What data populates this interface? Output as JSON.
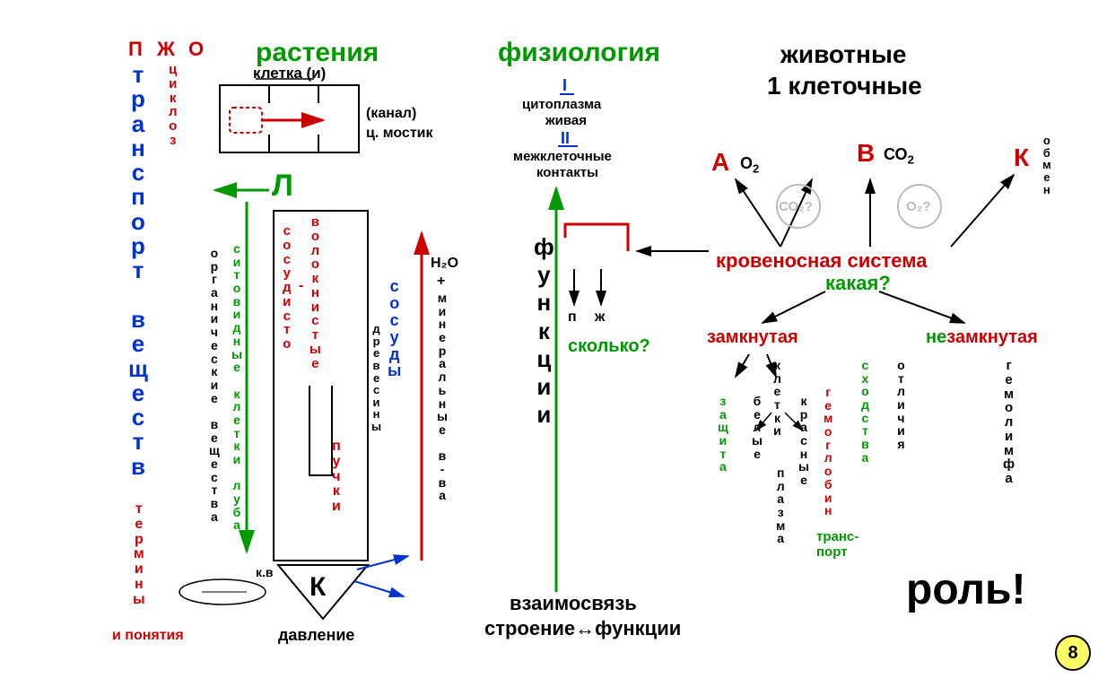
{
  "colors": {
    "red": "#cc0000",
    "green": "#009900",
    "blue": "#0033cc",
    "gray": "#888888",
    "black": "#000000",
    "yellow": "#ffff66"
  },
  "fontsizes": {
    "header": 30,
    "subheader": 22,
    "label": 18,
    "small": 15,
    "tiny": 13,
    "big": 48
  },
  "col1": {
    "P": "П",
    "Zh": "Ж",
    "O": "О",
    "cikloz": [
      "ц",
      "и",
      "к",
      "л",
      "о",
      "з"
    ],
    "transport": [
      "т",
      "р",
      "а",
      "н",
      "с",
      "п",
      "о",
      "р",
      "т",
      " ",
      "в",
      "е",
      "щ",
      "е",
      "с",
      "т",
      "в"
    ],
    "terminy": [
      "т",
      "е",
      "р",
      "м",
      "и",
      "н",
      "ы"
    ],
    "i_ponyatiya": "и понятия"
  },
  "col2": {
    "rasteniya": "растения",
    "kletka": "клетка (и)",
    "kanal": "(канал)",
    "mostik": "ц. мостик",
    "L": "Л",
    "org": [
      "о",
      "р",
      "г",
      "а",
      "н",
      "и",
      "ч",
      "е",
      "с",
      "к",
      "и",
      "е",
      " ",
      "в",
      "е",
      "щ",
      "е",
      "с",
      "т",
      "в",
      "а"
    ],
    "sito": [
      "с",
      "и",
      "т",
      "о",
      "в",
      "и",
      "д",
      "н",
      "ы",
      "е",
      " ",
      "к",
      "л",
      "е",
      "т",
      "к",
      "и",
      " ",
      "л",
      "у",
      "б",
      "а"
    ],
    "sosud": [
      "с",
      "о",
      "с",
      "у",
      "д",
      "и",
      "с",
      "т",
      "о"
    ],
    "dash": "-",
    "volokn": [
      "в",
      "о",
      "л",
      "о",
      "к",
      "н",
      "и",
      "с",
      "т",
      "ы",
      "е"
    ],
    "drev": [
      "д",
      "р",
      "е",
      "в",
      "е",
      "с",
      "и",
      "н",
      "ы"
    ],
    "sosudy": [
      "с",
      "о",
      "с",
      "у",
      "д",
      "ы"
    ],
    "puchki": [
      "п",
      "у",
      "ч",
      "к",
      "и"
    ],
    "h2o": "H₂O",
    "plus": "+",
    "miner": [
      "м",
      "и",
      "н",
      "е",
      "р",
      "а",
      "л",
      "ь",
      "н",
      "ы",
      "е",
      " ",
      "в",
      "-",
      "в",
      "а"
    ],
    "K": "К",
    "kv": "к.в",
    "davlenie": "давление"
  },
  "col3": {
    "fiziologiya": "физиология",
    "I": "I",
    "cito": "цитоплазма",
    "zhivaya": "живая",
    "II": "II",
    "mezh": "межклеточные",
    "kontakty": "контакты",
    "funkcii": [
      "ф",
      "у",
      "н",
      "к",
      "ц",
      "и",
      "и"
    ],
    "p": "п",
    "zh": "ж",
    "skolko": "сколько?",
    "vzaim": "взаимосвязь",
    "sf": "строение↔функции"
  },
  "col4": {
    "zhivotnye": "животные",
    "odnokl": "1 клеточные",
    "A": "А",
    "O2": "О",
    "o2sub": "2",
    "B": "В",
    "CO2": "СО",
    "co2sub": "2",
    "K": "К",
    "obmen": [
      "о",
      "б",
      "м",
      "е",
      "н"
    ],
    "CO2q": "СО₂?",
    "O2q": "О₂?",
    "krov": "кровеносная система",
    "kakaya": "какая?",
    "zamkn": "замкнутая",
    "nezamkn_ne": "не",
    "nezamkn_rest": "замкнутая",
    "kletki": [
      "к",
      "л",
      "е",
      "т",
      "к",
      "и"
    ],
    "zashita": [
      "з",
      "а",
      "щ",
      "и",
      "т",
      "а"
    ],
    "belye": [
      "б",
      "е",
      "л",
      "ы",
      "е"
    ],
    "krasnye": [
      "к",
      "р",
      "а",
      "с",
      "н",
      "ы",
      "е"
    ],
    "gemoglobin": [
      "г",
      "е",
      "м",
      "о",
      "г",
      "л",
      "о",
      "б",
      "и",
      "н"
    ],
    "plazma": [
      "п",
      "л",
      "а",
      "з",
      "м",
      "а"
    ],
    "transport": "транс-\nпорт",
    "shodstva": [
      "с",
      "х",
      "о",
      "д",
      "с",
      "т",
      "в",
      "а"
    ],
    "otlichiya": [
      "о",
      "т",
      "л",
      "и",
      "ч",
      "и",
      "я"
    ],
    "gemolimfa": [
      "г",
      "е",
      "м",
      "о",
      "л",
      "и",
      "м",
      "ф",
      "а"
    ],
    "rol": "роль!"
  },
  "page_number": "8"
}
